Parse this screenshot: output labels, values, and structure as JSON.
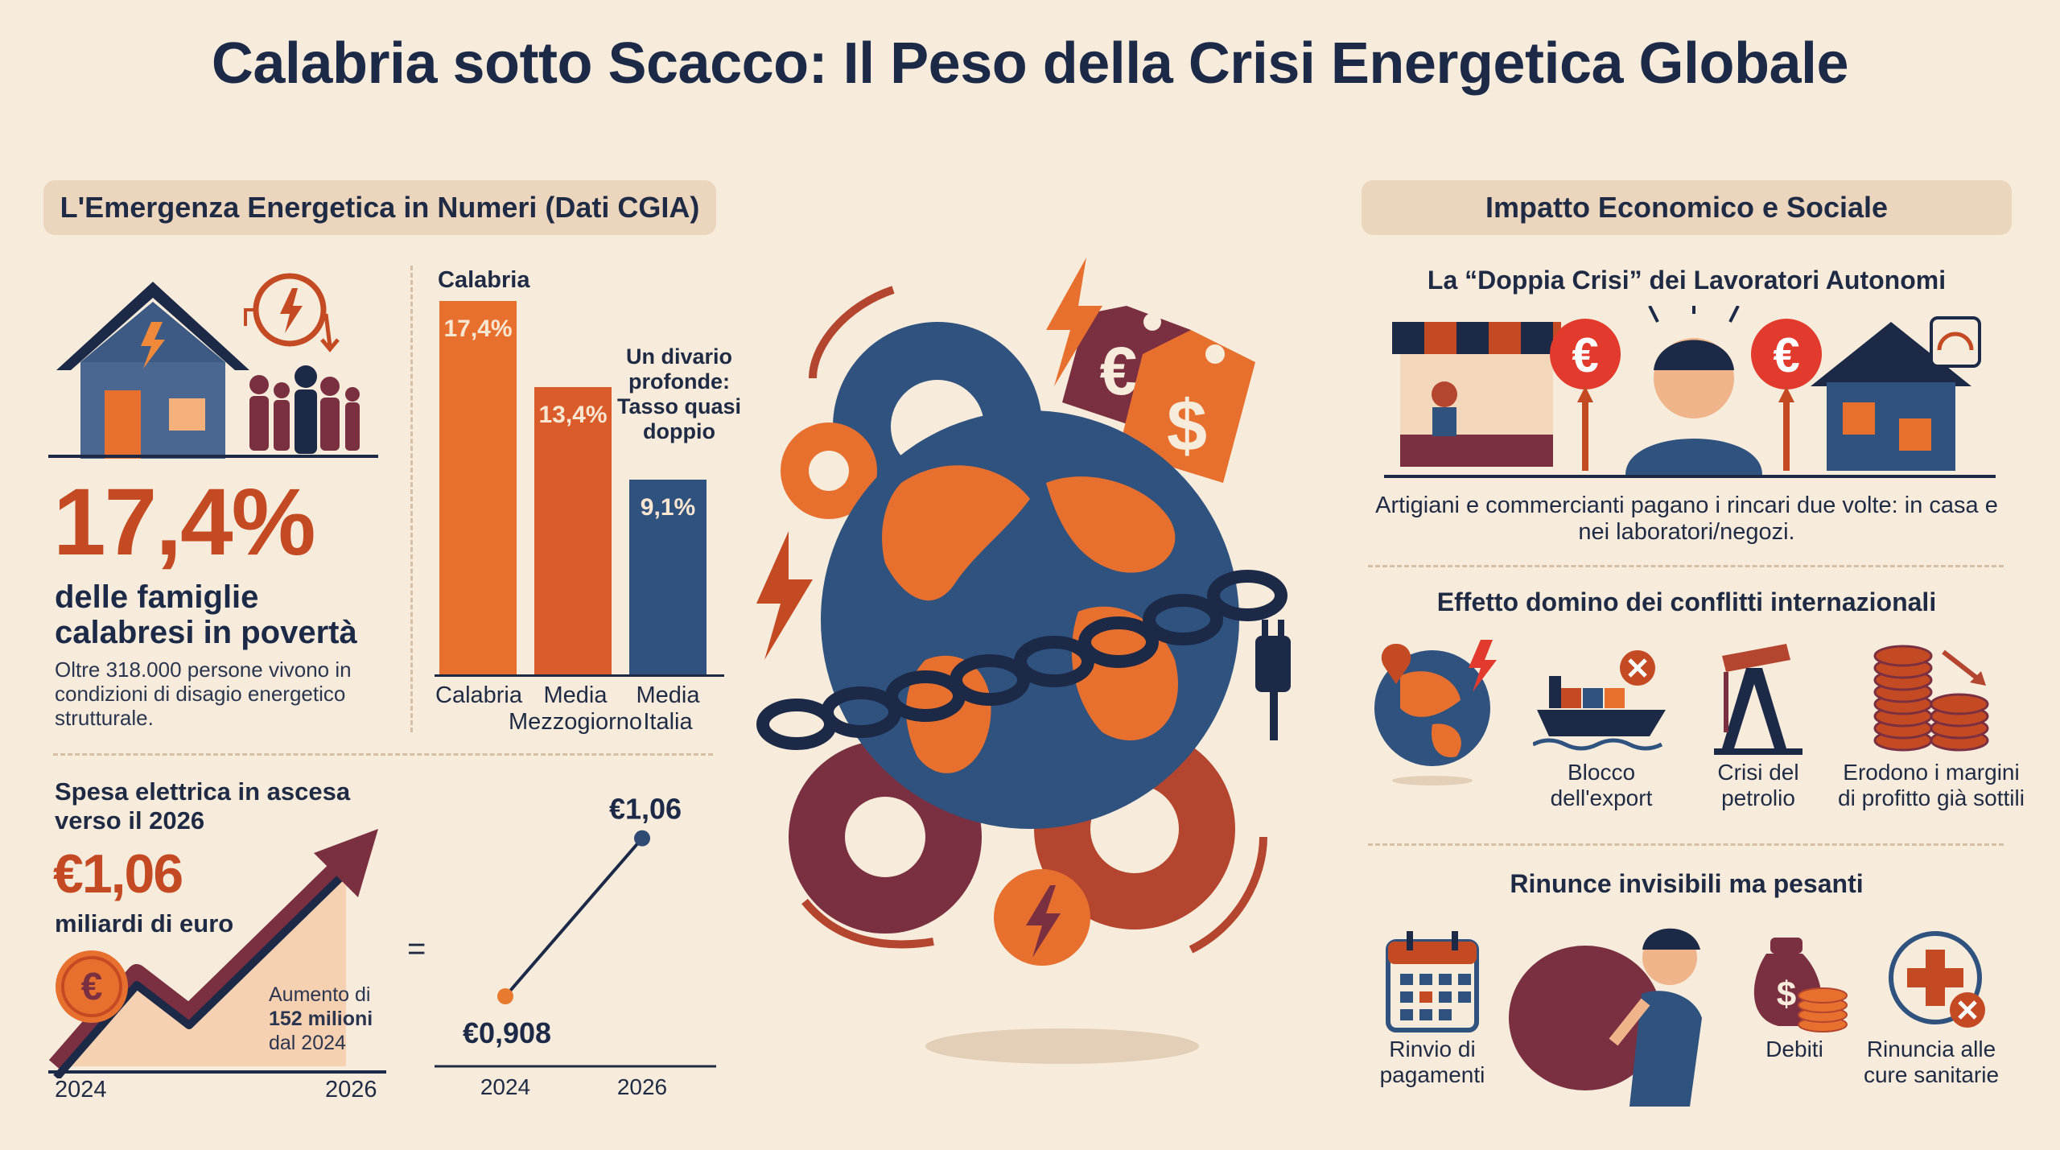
{
  "title": "Calabria sotto Scacco: Il Peso della Crisi Energetica Globale",
  "left": {
    "section_title": "L'Emergenza Energetica in Numeri (Dati CGIA)",
    "big_percent": "17,4%",
    "big_percent_caption": "delle famiglie calabresi in povertà",
    "big_percent_note": "Oltre 318.000 persone vivono in condizioni di disagio energetico strutturale.",
    "bar_chart_title": "Calabria",
    "gap_note": "Un divario profonde: Tasso quasi doppio",
    "spesa_title": "Spesa elettrica in ascesa verso il 2026",
    "spesa_value": "€1,06",
    "spesa_unit": "miliardi di euro",
    "aumento_line1": "Aumento di",
    "aumento_line2": "152 milioni",
    "aumento_line3": "dal 2024",
    "trend_x_start": "2024",
    "trend_x_end": "2026",
    "equals": "=",
    "euro_symbol": "€"
  },
  "chart_data": [
    {
      "type": "bar",
      "title": "Calabria",
      "categories": [
        "Calabria",
        "Media Mezzogiorno",
        "Media Italia"
      ],
      "values": [
        17.4,
        13.4,
        9.1
      ],
      "labels": [
        "17,4%",
        "13,4%",
        "9,1%"
      ],
      "colors": [
        "#e8702f",
        "#d95c2a",
        "#2f527f"
      ],
      "ylim": [
        0,
        17.4
      ]
    },
    {
      "type": "line",
      "x": [
        "2024",
        "2026"
      ],
      "y": [
        0.908,
        1.06
      ],
      "labels": [
        "€0,908",
        "€1,06"
      ],
      "colors": [
        "#e87a2f",
        "#2f4a73"
      ]
    }
  ],
  "right": {
    "section_title": "Impatto Economico e Sociale",
    "doppia_title": "La “Doppia Crisi” dei Lavoratori Autonomi",
    "doppia_text": "Artigiani e commercianti pagano i rincari due volte: in casa e nei laboratori/negozi.",
    "domino_title": "Effetto domino dei conflitti internazionali",
    "domino_items": [
      {
        "label": "",
        "icon": "globe-conflict-icon"
      },
      {
        "label": "Blocco dell'export",
        "icon": "cargo-ship-icon"
      },
      {
        "label": "Crisi del petrolio",
        "icon": "oil-pump-icon"
      },
      {
        "label": "Erodono i margini di profitto già sottili",
        "icon": "coin-stacks-icon"
      }
    ],
    "rinunce_title": "Rinunce invisibili ma pesanti",
    "rinunce_items": [
      {
        "label": "Rinvio di pagamenti",
        "icon": "calendar-icon"
      },
      {
        "label": "",
        "icon": "burdened-man-icon"
      },
      {
        "label": "Debiti",
        "icon": "money-bag-icon"
      },
      {
        "label": "Rinuncia alle cure sanitarie",
        "icon": "medical-cross-icon"
      }
    ],
    "euro_symbol": "€"
  },
  "center": {
    "currency_symbols": [
      "€",
      "$"
    ]
  },
  "colors": {
    "background": "#f7ecdc",
    "accent_orange": "#e8702f",
    "accent_red": "#c44a24",
    "navy": "#1c2a48",
    "blue": "#2f527f",
    "maroon": "#7a3040"
  }
}
